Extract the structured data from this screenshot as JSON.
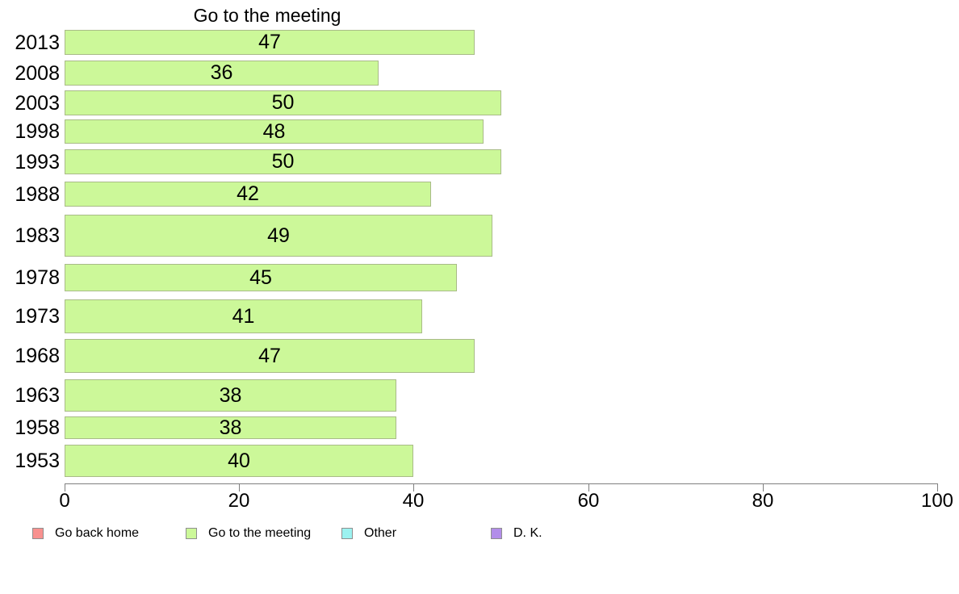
{
  "chart_data": {
    "type": "bar",
    "orientation": "horizontal",
    "title": "Go to the meeting",
    "series_name": "Go to the meeting",
    "categories": [
      "2013",
      "2008",
      "2003",
      "1998",
      "1993",
      "1988",
      "1983",
      "1978",
      "1973",
      "1968",
      "1963",
      "1958",
      "1953"
    ],
    "values": [
      47,
      36,
      50,
      48,
      50,
      42,
      49,
      45,
      41,
      47,
      38,
      38,
      40
    ],
    "xlim": [
      0,
      100
    ],
    "x_ticks": [
      0,
      20,
      40,
      60,
      80,
      100
    ],
    "grid": false,
    "legend_position": "bottom",
    "colors": {
      "bar_fill": "#ccf899",
      "bar_border": "#a9bb88",
      "axis": "#7f7f7f",
      "text": "#000000"
    },
    "legend": [
      {
        "label": "Go back home",
        "color": "#f8918f"
      },
      {
        "label": "Go to the meeting",
        "color": "#ccf899"
      },
      {
        "label": "Other",
        "color": "#9cf2f0"
      },
      {
        "label": "D. K.",
        "color": "#b28de9"
      }
    ]
  }
}
